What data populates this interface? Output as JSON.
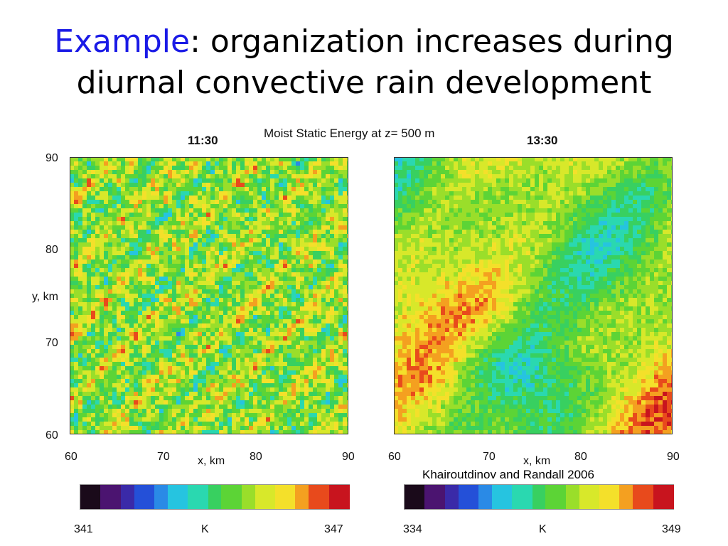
{
  "title": {
    "accent": "Example",
    "rest": ": organization increases during",
    "line2": "diurnal convective rain development"
  },
  "figure_title": "Moist Static Energy at z= 500 m",
  "credit": "Khairoutdinov and Randall 2006",
  "chart_data": [
    {
      "type": "heatmap",
      "title": "11:30",
      "xlabel": "x, km",
      "ylabel": "y, km",
      "x_ticks": [
        "60",
        "70",
        "80",
        "90"
      ],
      "y_ticks": [
        "60",
        "70",
        "80",
        "90"
      ],
      "xlim": [
        60,
        90
      ],
      "ylim": [
        60,
        90
      ],
      "colorbar": {
        "min": "341",
        "max": "347",
        "unit": "K"
      },
      "pattern": "fine, evenly distributed cells (unorganized)"
    },
    {
      "type": "heatmap",
      "title": "13:30",
      "xlabel": "x, km",
      "x_ticks": [
        "60",
        "70",
        "80",
        "90"
      ],
      "xlim": [
        60,
        90
      ],
      "ylim": [
        60,
        90
      ],
      "colorbar": {
        "min": "334",
        "max": "349",
        "unit": "K"
      },
      "pattern": "large organized warm bands and cool pools"
    }
  ],
  "colormap": [
    "#1a0a1a",
    "#4b1470",
    "#3a2aa8",
    "#2450d8",
    "#2a8ae6",
    "#26c4e0",
    "#2ad8b0",
    "#38d060",
    "#5cd436",
    "#9ade2a",
    "#d8e82a",
    "#f4e02a",
    "#f4a020",
    "#e84a1c",
    "#c8141e",
    "#f0a0a0"
  ]
}
